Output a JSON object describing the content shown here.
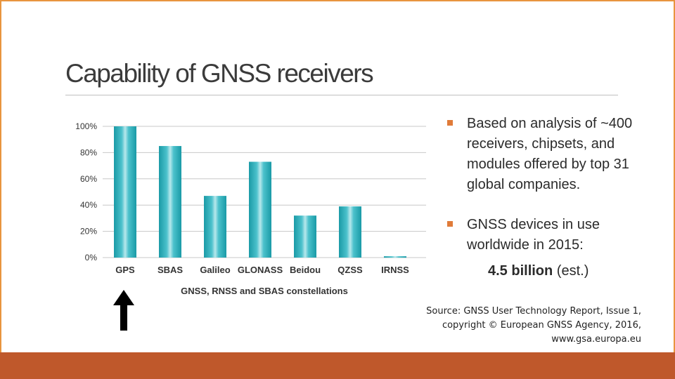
{
  "slide": {
    "title": "Capability of GNSS receivers",
    "bullets": [
      "Based on analysis of ~400 receivers, chipsets, and modules offered by top 31 global companies.",
      "GNSS devices in use worldwide in 2015:"
    ],
    "estimate_value": "4.5 billion",
    "estimate_suffix": " (est.)",
    "source_lines": [
      "Source: GNSS User Technology Report, Issue 1,",
      "copyright © European GNSS Agency, 2016,",
      "www.gsa.europa.eu"
    ],
    "colors": {
      "frame": "#e8953e",
      "bottom_band": "#bf582b",
      "bar": "#1fa3b0",
      "bullet": "#e07b39"
    },
    "arrow_icon": "up-arrow-icon"
  },
  "chart_data": {
    "type": "bar",
    "categories": [
      "GPS",
      "SBAS",
      "Galileo",
      "GLONASS",
      "Beidou",
      "QZSS",
      "IRNSS"
    ],
    "values": [
      100,
      85,
      47,
      73,
      32,
      39,
      1
    ],
    "xlabel": "GNSS, RNSS and SBAS constellations",
    "ylabel": "",
    "ylim": [
      0,
      100
    ],
    "yticks": [
      "0%",
      "20%",
      "40%",
      "60%",
      "80%",
      "100%"
    ],
    "grid": true,
    "legend": "none"
  }
}
